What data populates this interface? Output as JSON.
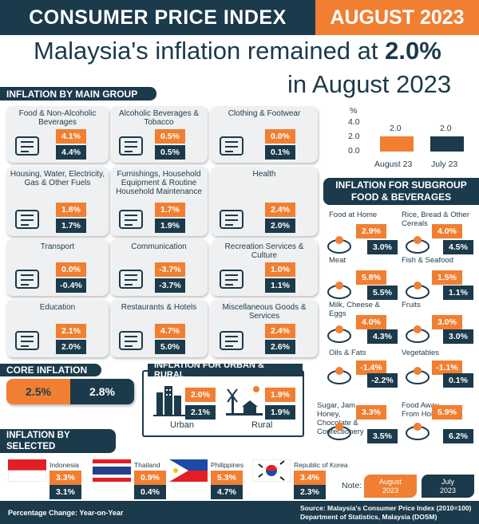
{
  "header": {
    "title": "CONSUMER PRICE INDEX",
    "month": "AUGUST 2023"
  },
  "headline": {
    "line1_prefix": "Malaysia's inflation remained at ",
    "line1_value": "2.0%",
    "line2": "in August 2023"
  },
  "colors": {
    "navy": "#1b3a4b",
    "orange": "#f07f32",
    "card": "#eef0f1"
  },
  "sections": {
    "main_group": "INFLATION BY MAIN GROUP",
    "core": "CORE INFLATION",
    "urban_rural": "INFLATION FOR URBAN & RURAL",
    "countries": "INFLATION BY SELECTED COUNTRIES",
    "subgroup": "INFLATION FOR SUBGROUP FOOD & BEVERAGES"
  },
  "main_groups": [
    {
      "label": "Food & Non-Alcoholic Beverages",
      "aug": "4.1%",
      "jul": "4.4%",
      "icon": "groceries-icon"
    },
    {
      "label": "Alcoholic Beverages & Tobacco",
      "aug": "0.5%",
      "jul": "0.5%",
      "icon": "bottle-icon"
    },
    {
      "label": "Clothing & Footwear",
      "aug": "0.0%",
      "jul": "0.1%",
      "icon": "clothes-rack-icon"
    },
    {
      "label": "Housing, Water, Electricity, Gas & Other Fuels",
      "aug": "1.8%",
      "jul": "1.7%",
      "icon": "house-icon"
    },
    {
      "label": "Furnishings, Household Equipment & Routine Household Maintenance",
      "aug": "1.7%",
      "jul": "1.9%",
      "icon": "sofa-icon"
    },
    {
      "label": "Health",
      "aug": "2.4%",
      "jul": "2.0%",
      "icon": "health-hands-icon"
    },
    {
      "label": "Transport",
      "aug": "0.0%",
      "jul": "-0.4%",
      "icon": "transport-icon"
    },
    {
      "label": "Communication",
      "aug": "-3.7%",
      "jul": "-3.7%",
      "icon": "communication-icon"
    },
    {
      "label": "Recreation Services & Culture",
      "aug": "1.0%",
      "jul": "1.1%",
      "icon": "recreation-icon"
    },
    {
      "label": "Education",
      "aug": "2.1%",
      "jul": "2.0%",
      "icon": "education-icon"
    },
    {
      "label": "Restaurants & Hotels",
      "aug": "4.7%",
      "jul": "5.0%",
      "icon": "hotel-icon"
    },
    {
      "label": "Miscellaneous Goods & Services",
      "aug": "2.4%",
      "jul": "2.6%",
      "icon": "misc-goods-icon"
    }
  ],
  "core": {
    "aug": "2.5%",
    "jul": "2.8%"
  },
  "urban": {
    "label": "Urban",
    "aug": "2.0%",
    "jul": "2.1%"
  },
  "rural": {
    "label": "Rural",
    "aug": "1.9%",
    "jul": "1.9%"
  },
  "countries": [
    {
      "name": "Indonesia",
      "aug": "3.3%",
      "jul": "3.1%",
      "icon": "indonesia-flag-icon"
    },
    {
      "name": "Thailand",
      "aug": "0.9%",
      "jul": "0.4%",
      "icon": "thailand-flag-icon"
    },
    {
      "name": "Philippines",
      "aug": "5.3%",
      "jul": "4.7%",
      "icon": "philippines-flag-icon"
    },
    {
      "name": "Republic of Korea",
      "aug": "3.4%",
      "jul": "2.3%",
      "icon": "korea-flag-icon"
    }
  ],
  "chart_data": {
    "type": "bar",
    "categories": [
      "August 23",
      "July 23"
    ],
    "values": [
      2.0,
      2.0
    ],
    "value_labels": [
      "2.0",
      "2.0"
    ],
    "ylabel": "%",
    "yticks": [
      "4.0",
      "2.0",
      "0.0"
    ],
    "ylim": [
      0,
      4.0
    ],
    "colors": [
      "#f07f32",
      "#1b3a4b"
    ]
  },
  "subgroups": [
    {
      "label": "Food at Home",
      "aug": "2.9%",
      "jul": "3.0%",
      "icon": "food-at-home-icon"
    },
    {
      "label": "Rice, Bread & Other Cereals",
      "aug": "4.0%",
      "jul": "4.5%",
      "icon": "rice-bread-icon"
    },
    {
      "label": "Meat",
      "aug": "5.8%",
      "jul": "5.5%",
      "icon": "meat-icon"
    },
    {
      "label": "Fish & Seafood",
      "aug": "1.5%",
      "jul": "1.1%",
      "icon": "fish-icon"
    },
    {
      "label": "Milk, Cheese & Eggs",
      "aug": "4.0%",
      "jul": "4.3%",
      "icon": "milk-cheese-icon"
    },
    {
      "label": "Fruits",
      "aug": "3.0%",
      "jul": "3.0%",
      "icon": "fruits-icon"
    },
    {
      "label": "Oils & Fats",
      "aug": "-1.4%",
      "jul": "-2.2%",
      "icon": "oil-bottle-icon"
    },
    {
      "label": "Vegetables",
      "aug": "-1.1%",
      "jul": "0.1%",
      "icon": "vegetables-icon"
    },
    {
      "label": "Sugar, Jam, Honey, Chocolate & Confectionery",
      "aug": "3.3%",
      "jul": "3.5%",
      "icon": "confectionery-icon"
    },
    {
      "label": "Food Away From Home",
      "aug": "5.9%",
      "jul": "6.2%",
      "icon": "burger-icon"
    }
  ],
  "note": {
    "label": "Note:",
    "aug_line1": "August",
    "aug_line2": "2023",
    "jul_line1": "July",
    "jul_line2": "2023"
  },
  "footer": {
    "left": "Percentage Change: Year-on-Year",
    "right1": "Source: Malaysia's Consumer Price Index (2010=100)",
    "right2": "Department of Statistics, Malaysia (DOSM)"
  }
}
